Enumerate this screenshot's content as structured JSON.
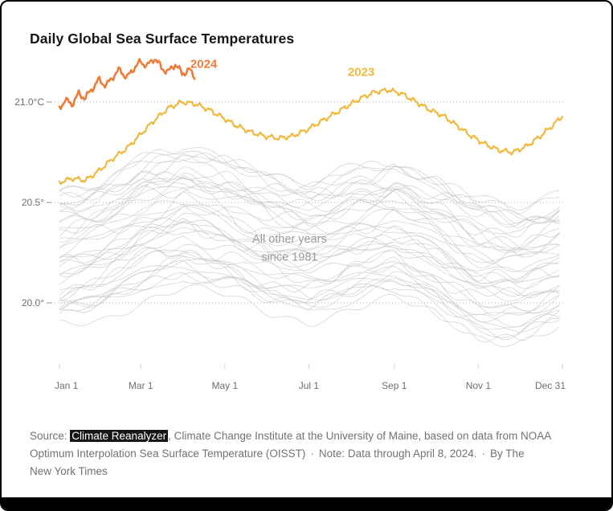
{
  "header": {
    "title": "Daily Global Sea Surface Temperatures"
  },
  "chart_data": {
    "type": "line",
    "title": "Daily Global Sea Surface Temperatures",
    "style": {
      "grid_color": "#b5b5b5",
      "axis_text_color": "#6e6e6e"
    },
    "x_axis": {
      "unit": "day of year",
      "range_days": [
        1,
        366
      ],
      "ticks": [
        {
          "day": 1,
          "label": "Jan 1"
        },
        {
          "day": 60,
          "label": "Mar 1"
        },
        {
          "day": 121,
          "label": "May 1"
        },
        {
          "day": 182,
          "label": "Jul 1"
        },
        {
          "day": 244,
          "label": "Sep 1"
        },
        {
          "day": 305,
          "label": "Nov 1"
        },
        {
          "day": 366,
          "label": "Dec 31"
        }
      ]
    },
    "y_axis": {
      "unit": "°C",
      "range": [
        19.7,
        21.3
      ],
      "gridlines": "dotted",
      "ticks": [
        {
          "value": 21.0,
          "label": "21.0°C"
        },
        {
          "value": 20.5,
          "label": "20.5°"
        },
        {
          "value": 20.0,
          "label": "20.0°"
        }
      ]
    },
    "series": [
      {
        "name": "2024",
        "color": "#ed7c39",
        "width": 2.6,
        "wiggle": 0.013,
        "note": "data through April 8, 2024",
        "days": [
          1,
          5,
          10,
          15,
          20,
          25,
          30,
          35,
          40,
          45,
          50,
          55,
          60,
          65,
          70,
          75,
          80,
          85,
          90,
          95,
          99
        ],
        "values": [
          20.97,
          21.01,
          20.99,
          21.04,
          21.02,
          21.07,
          21.11,
          21.08,
          21.13,
          21.16,
          21.12,
          21.17,
          21.2,
          21.18,
          21.22,
          21.17,
          21.15,
          21.19,
          21.14,
          21.16,
          21.13
        ]
      },
      {
        "name": "2023",
        "color": "#f1b83e",
        "width": 2.2,
        "wiggle": 0.009,
        "days": [
          1,
          10,
          20,
          30,
          40,
          50,
          60,
          70,
          80,
          90,
          100,
          110,
          120,
          130,
          140,
          150,
          160,
          170,
          180,
          190,
          200,
          210,
          220,
          230,
          240,
          250,
          260,
          270,
          280,
          290,
          300,
          310,
          320,
          330,
          340,
          350,
          360,
          366
        ],
        "values": [
          20.6,
          20.62,
          20.61,
          20.66,
          20.72,
          20.77,
          20.84,
          20.91,
          20.97,
          21.0,
          20.99,
          20.96,
          20.92,
          20.88,
          20.85,
          20.83,
          20.82,
          20.83,
          20.86,
          20.9,
          20.94,
          20.98,
          21.02,
          21.05,
          21.06,
          21.04,
          21.0,
          20.96,
          20.93,
          20.88,
          20.83,
          20.79,
          20.76,
          20.75,
          20.78,
          20.83,
          20.89,
          20.93
        ]
      }
    ],
    "other_years": {
      "label": "All other years since 1981",
      "first_year": 1981,
      "count": 42,
      "color": "#c7c7c7",
      "jan1_value_range": [
        19.9,
        20.55
      ],
      "seasonal_shape_days": [
        1,
        32,
        60,
        91,
        121,
        152,
        182,
        213,
        244,
        274,
        305,
        335,
        366
      ],
      "seasonal_shape_degC": [
        0,
        0.05,
        0.15,
        0.21,
        0.16,
        0.08,
        0.04,
        0.1,
        0.14,
        0.06,
        -0.05,
        -0.08,
        -0.01
      ],
      "seed": 20240408
    },
    "annotations": [
      {
        "text": "2024",
        "day": 96,
        "value": 21.17,
        "color": "#ed7c39",
        "bold": true,
        "size": 15,
        "anchor": "start",
        "name": "annotation-2024"
      },
      {
        "text": "2023",
        "day": 220,
        "value": 21.13,
        "color": "#f1b83e",
        "bold": true,
        "size": 15,
        "anchor": "middle",
        "name": "annotation-2023"
      },
      {
        "text": "All other years",
        "day": 168,
        "value": 20.3,
        "color": "#9b9b9b",
        "bold": false,
        "size": 14.5,
        "anchor": "middle",
        "name": "annotation-other-years-1"
      },
      {
        "text": "since 1981",
        "day": 168,
        "value": 20.21,
        "color": "#9b9b9b",
        "bold": false,
        "size": 14.5,
        "anchor": "middle",
        "name": "annotation-other-years-2"
      }
    ]
  },
  "footer": {
    "source_label": "Source: ",
    "source_link": "Climate Reanalyzer",
    "line1_rest": ", Climate Change Institute at the University of Maine, based on data from NOAA",
    "line2a": "Optimum Interpolation Sea Surface Temperature (OISST)",
    "dot": "·",
    "line2b": "Note: Data through April 8, 2024.",
    "line2c": "By The",
    "line3": "New York Times"
  }
}
